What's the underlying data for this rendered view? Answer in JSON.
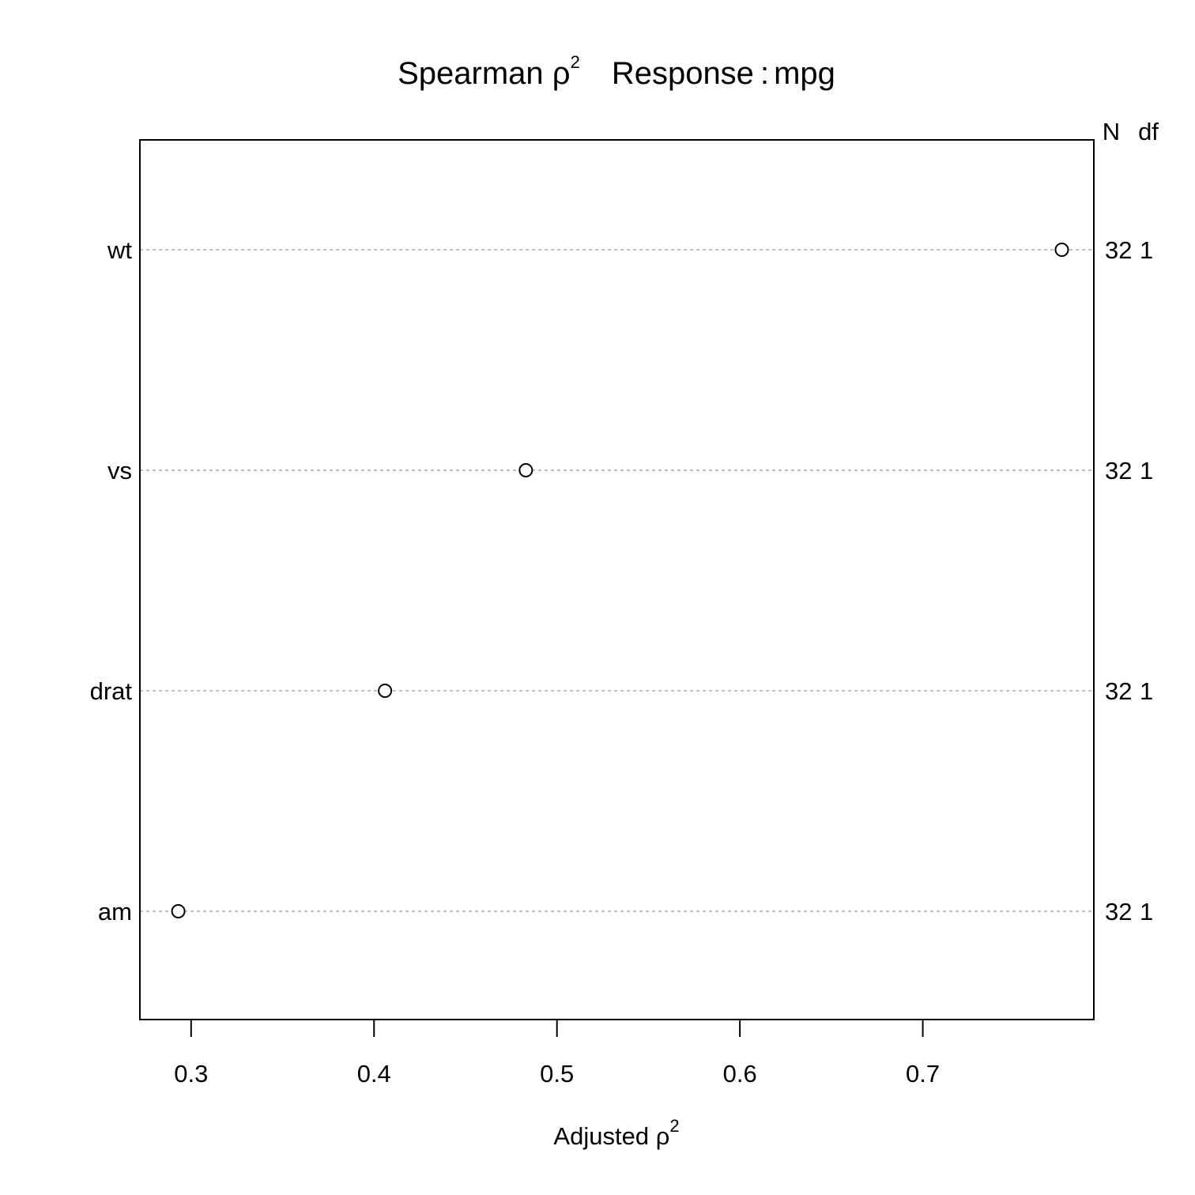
{
  "chart_data": {
    "type": "scatter",
    "title": {
      "prefix": "Spearman ",
      "symbol": "ρ",
      "superscript": "2",
      "response_label": "Response",
      "separator": ":",
      "response_value": "mpg"
    },
    "xlabel": {
      "prefix": "Adjusted ",
      "symbol": "ρ",
      "superscript": "2"
    },
    "xlim": [
      0.272,
      0.7935
    ],
    "xticks": [
      "0.3",
      "0.4",
      "0.5",
      "0.6",
      "0.7"
    ],
    "right_header": [
      "N",
      "df"
    ],
    "categories": [
      "wt",
      "vs",
      "drat",
      "am"
    ],
    "values": [
      0.776,
      0.483,
      0.406,
      0.293
    ],
    "n": [
      "32",
      "32",
      "32",
      "32"
    ],
    "df": [
      "1",
      "1",
      "1",
      "1"
    ],
    "grid": true,
    "grid_color": "#bebebe",
    "point_color": "#000000",
    "marker": "open-circle"
  }
}
